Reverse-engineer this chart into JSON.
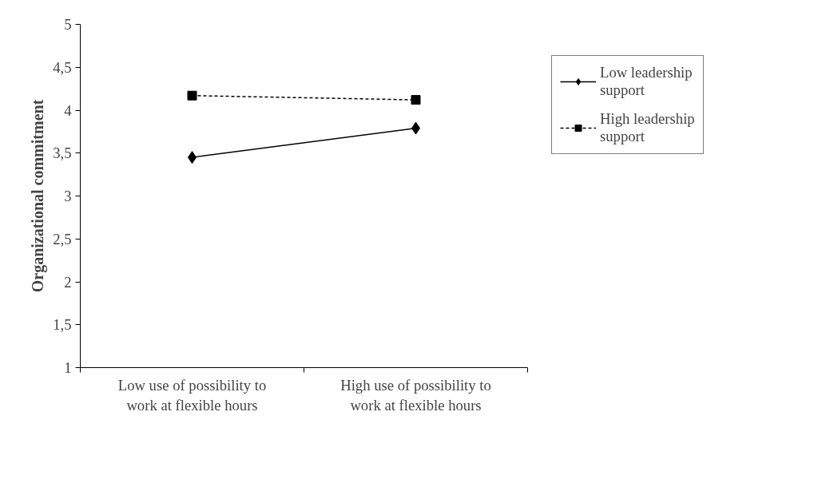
{
  "chart_data": {
    "type": "line",
    "ylabel": "Organizational commitment",
    "categories": [
      "Low use of possibility to work at flexible hours",
      "High use of possibility to work at flexible hours"
    ],
    "series": [
      {
        "name": "Low leadership support",
        "color": "#000000",
        "values": [
          3.45,
          3.79
        ],
        "marker": "diamond",
        "line_style": "solid"
      },
      {
        "name": "High leadership support",
        "color": "#000000",
        "values": [
          4.17,
          4.12
        ],
        "marker": "square",
        "line_style": "dashed"
      }
    ],
    "ylim": [
      1,
      5
    ],
    "yticks": [
      1,
      {
        "value": 1.5,
        "label": "1,5"
      },
      2,
      {
        "value": 2.5,
        "label": "2,5"
      },
      3,
      {
        "value": 3.5,
        "label": "3,5"
      },
      4,
      {
        "value": 4.5,
        "label": "4,5"
      },
      5
    ],
    "grid": false,
    "legend": "right"
  }
}
